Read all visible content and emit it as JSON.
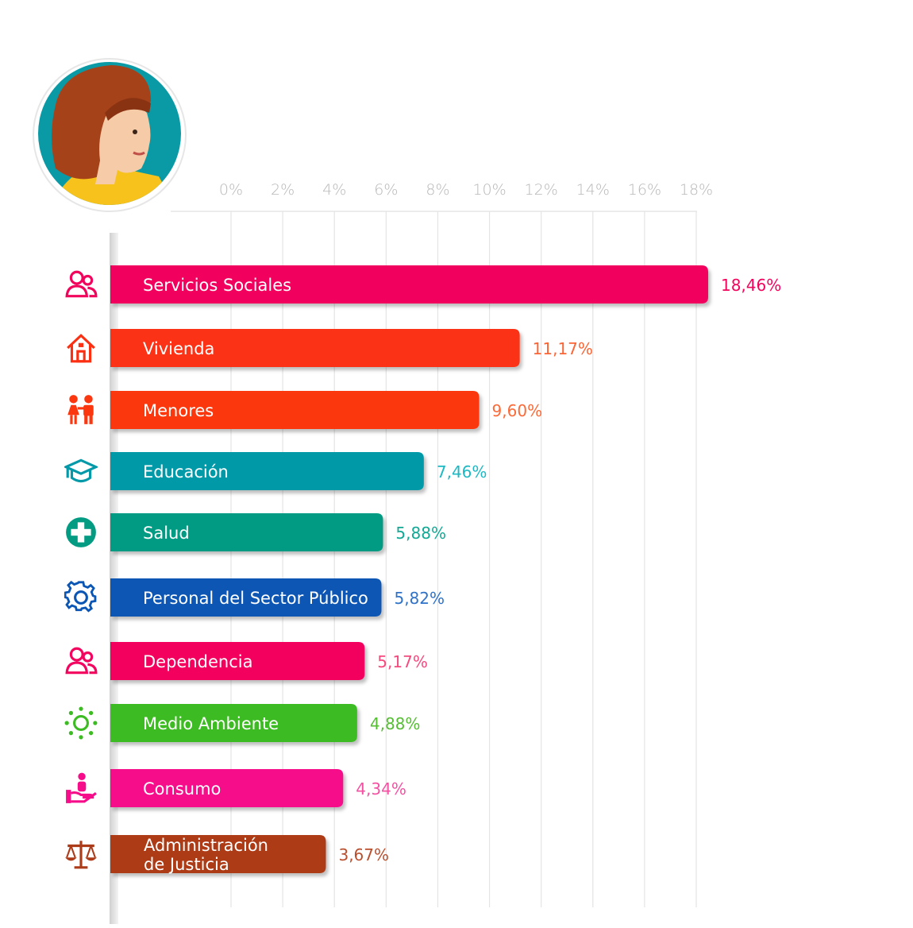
{
  "chart_data": {
    "type": "bar",
    "orientation": "horizontal",
    "xlim": [
      0,
      18
    ],
    "ticks": [
      "0%",
      "2%",
      "4%",
      "6%",
      "8%",
      "10%",
      "12%",
      "14%",
      "16%",
      "18%"
    ],
    "grid": true,
    "categories": [
      "Servicios Sociales",
      "Vivienda",
      "Menores",
      "Educación",
      "Salud",
      "Personal del Sector Público",
      "Dependencia",
      "Medio Ambiente",
      "Consumo",
      "Administración de Justicia"
    ],
    "values": [
      18.46,
      11.17,
      9.6,
      7.46,
      5.88,
      5.82,
      5.17,
      4.88,
      4.34,
      3.67
    ],
    "value_labels": [
      "18,46%",
      "11,17%",
      "9,60%",
      "7,46%",
      "5,88%",
      "5,82%",
      "5,17%",
      "4,88%",
      "4,34%",
      "3,67%"
    ],
    "colors": [
      "#f2045d",
      "#fb3012",
      "#fb3710",
      "#0499a8",
      "#039b82",
      "#0b56b4",
      "#f3045f",
      "#3dbb22",
      "#f50d8a",
      "#ac3b19"
    ],
    "label_colors": [
      "#f2045d",
      "#fb6535",
      "#fb6a38",
      "#1cb9c4",
      "#11a895",
      "#2f72c8",
      "#f54a7e",
      "#55be33",
      "#f451a3",
      "#b94f2e"
    ],
    "icons": [
      "people-icon",
      "house-icon",
      "children-icon",
      "graduation-cap-icon",
      "medical-cross-icon",
      "gear-icon",
      "people-icon",
      "sun-icon",
      "hand-person-icon",
      "scales-icon"
    ]
  },
  "avatar": {
    "name": "woman-avatar-icon",
    "bg": "#0a9aa6",
    "hair": "#a6421a",
    "shirt": "#f6c21b"
  }
}
